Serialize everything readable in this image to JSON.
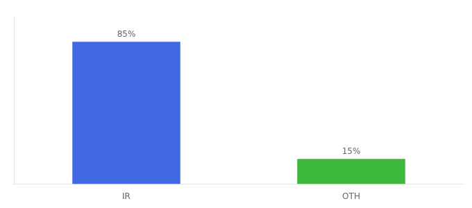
{
  "chart_data": {
    "type": "bar",
    "categories": [
      "IR",
      "OTH"
    ],
    "values": [
      85,
      15
    ],
    "value_labels": [
      "85%",
      "15%"
    ],
    "colors": [
      "#4169e1",
      "#3cb83c"
    ],
    "ylim": [
      0,
      100
    ],
    "grid": false,
    "data_labels": true,
    "tick_labels": "x"
  }
}
